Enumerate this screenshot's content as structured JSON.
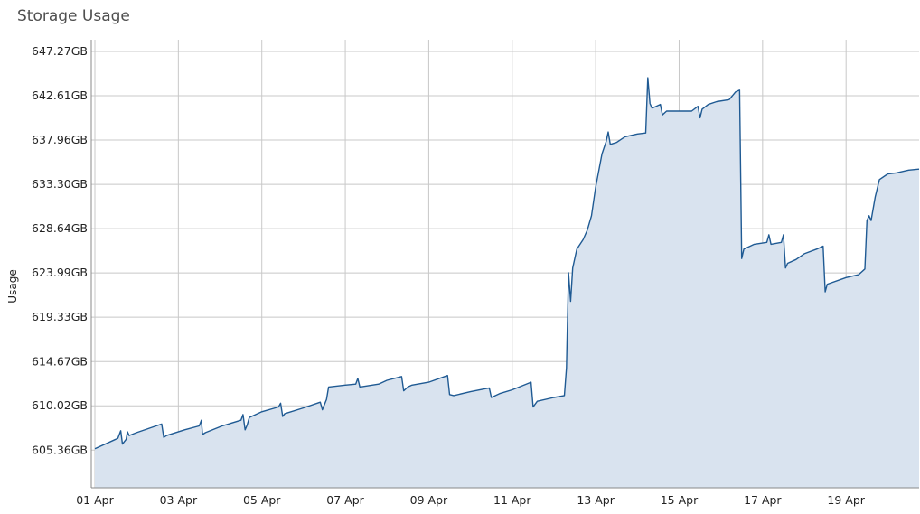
{
  "widget": {
    "title": "Storage Usage"
  },
  "chart_data": {
    "type": "area",
    "ylabel": "Usage",
    "xlabel": "",
    "grid": true,
    "legend": "none",
    "colors": {
      "line": "#1f5a93",
      "fill": "#d9e3ef",
      "grid": "#c8c8c8",
      "axis": "#888888"
    },
    "xlim": [
      0,
      19.75
    ],
    "ylim": [
      601.4,
      648.5
    ],
    "x_ticks": [
      {
        "x": 0,
        "label": "01 Apr"
      },
      {
        "x": 2,
        "label": "03 Apr"
      },
      {
        "x": 4,
        "label": "05 Apr"
      },
      {
        "x": 6,
        "label": "07 Apr"
      },
      {
        "x": 8,
        "label": "09 Apr"
      },
      {
        "x": 10,
        "label": "11 Apr"
      },
      {
        "x": 12,
        "label": "13 Apr"
      },
      {
        "x": 14,
        "label": "15 Apr"
      },
      {
        "x": 16,
        "label": "17 Apr"
      },
      {
        "x": 18,
        "label": "19 Apr"
      }
    ],
    "x_gridlines": [
      0,
      2,
      4,
      6,
      8,
      10,
      12,
      14,
      16,
      18
    ],
    "y_ticks": [
      {
        "y": 605.36,
        "label": "605.36GB"
      },
      {
        "y": 610.02,
        "label": "610.02GB"
      },
      {
        "y": 614.67,
        "label": "614.67GB"
      },
      {
        "y": 619.33,
        "label": "619.33GB"
      },
      {
        "y": 623.99,
        "label": "623.99GB"
      },
      {
        "y": 628.64,
        "label": "628.64GB"
      },
      {
        "y": 633.3,
        "label": "633.30GB"
      },
      {
        "y": 637.96,
        "label": "637.96GB"
      },
      {
        "y": 642.61,
        "label": "642.61GB"
      },
      {
        "y": 647.27,
        "label": "647.27GB"
      }
    ],
    "series": [
      {
        "values": [
          [
            0.0,
            605.5
          ],
          [
            0.55,
            606.6
          ],
          [
            0.62,
            607.4
          ],
          [
            0.66,
            606.0
          ],
          [
            0.75,
            606.5
          ],
          [
            0.78,
            607.3
          ],
          [
            0.82,
            606.9
          ],
          [
            1.0,
            607.2
          ],
          [
            1.6,
            608.1
          ],
          [
            1.65,
            606.7
          ],
          [
            1.72,
            606.9
          ],
          [
            2.15,
            607.5
          ],
          [
            2.5,
            607.9
          ],
          [
            2.55,
            608.5
          ],
          [
            2.58,
            607.0
          ],
          [
            2.65,
            607.2
          ],
          [
            3.05,
            607.9
          ],
          [
            3.5,
            608.5
          ],
          [
            3.55,
            609.1
          ],
          [
            3.6,
            607.5
          ],
          [
            3.65,
            608.0
          ],
          [
            3.7,
            608.8
          ],
          [
            4.0,
            609.4
          ],
          [
            4.4,
            609.9
          ],
          [
            4.45,
            610.3
          ],
          [
            4.5,
            608.9
          ],
          [
            4.55,
            609.2
          ],
          [
            5.0,
            609.8
          ],
          [
            5.4,
            610.4
          ],
          [
            5.45,
            609.6
          ],
          [
            5.55,
            610.7
          ],
          [
            5.6,
            612.0
          ],
          [
            6.0,
            612.2
          ],
          [
            6.25,
            612.3
          ],
          [
            6.3,
            612.9
          ],
          [
            6.35,
            612.0
          ],
          [
            6.8,
            612.3
          ],
          [
            7.0,
            612.7
          ],
          [
            7.35,
            613.1
          ],
          [
            7.4,
            611.6
          ],
          [
            7.5,
            612.0
          ],
          [
            7.6,
            612.2
          ],
          [
            8.0,
            612.5
          ],
          [
            8.45,
            613.2
          ],
          [
            8.5,
            611.2
          ],
          [
            8.6,
            611.1
          ],
          [
            9.0,
            611.5
          ],
          [
            9.45,
            611.9
          ],
          [
            9.5,
            610.9
          ],
          [
            9.7,
            611.3
          ],
          [
            10.0,
            611.7
          ],
          [
            10.45,
            612.5
          ],
          [
            10.5,
            609.9
          ],
          [
            10.6,
            610.5
          ],
          [
            11.0,
            610.9
          ],
          [
            11.25,
            611.1
          ],
          [
            11.3,
            614.0
          ],
          [
            11.35,
            624.0
          ],
          [
            11.4,
            621.0
          ],
          [
            11.45,
            624.5
          ],
          [
            11.55,
            626.5
          ],
          [
            11.7,
            627.5
          ],
          [
            11.8,
            628.5
          ],
          [
            11.9,
            630.0
          ],
          [
            12.0,
            633.0
          ],
          [
            12.15,
            636.5
          ],
          [
            12.25,
            637.8
          ],
          [
            12.3,
            638.8
          ],
          [
            12.35,
            637.5
          ],
          [
            12.5,
            637.7
          ],
          [
            12.7,
            638.3
          ],
          [
            13.0,
            638.6
          ],
          [
            13.2,
            638.7
          ],
          [
            13.25,
            644.5
          ],
          [
            13.3,
            641.8
          ],
          [
            13.35,
            641.3
          ],
          [
            13.45,
            641.5
          ],
          [
            13.55,
            641.7
          ],
          [
            13.6,
            640.6
          ],
          [
            13.7,
            641.0
          ],
          [
            14.0,
            641.0
          ],
          [
            14.3,
            641.0
          ],
          [
            14.45,
            641.5
          ],
          [
            14.5,
            640.3
          ],
          [
            14.55,
            641.2
          ],
          [
            14.7,
            641.7
          ],
          [
            14.9,
            642.0
          ],
          [
            15.2,
            642.2
          ],
          [
            15.35,
            643.0
          ],
          [
            15.45,
            643.2
          ],
          [
            15.5,
            625.5
          ],
          [
            15.55,
            626.5
          ],
          [
            15.8,
            627.0
          ],
          [
            16.1,
            627.2
          ],
          [
            16.15,
            628.0
          ],
          [
            16.2,
            627.0
          ],
          [
            16.45,
            627.2
          ],
          [
            16.5,
            628.0
          ],
          [
            16.55,
            624.5
          ],
          [
            16.6,
            625.0
          ],
          [
            16.8,
            625.4
          ],
          [
            17.0,
            626.0
          ],
          [
            17.3,
            626.5
          ],
          [
            17.45,
            626.8
          ],
          [
            17.5,
            622.0
          ],
          [
            17.55,
            622.8
          ],
          [
            18.0,
            623.5
          ],
          [
            18.3,
            623.8
          ],
          [
            18.45,
            624.4
          ],
          [
            18.5,
            629.5
          ],
          [
            18.55,
            630.0
          ],
          [
            18.6,
            629.5
          ],
          [
            18.7,
            632.0
          ],
          [
            18.8,
            633.8
          ],
          [
            19.0,
            634.4
          ],
          [
            19.2,
            634.5
          ],
          [
            19.5,
            634.8
          ],
          [
            19.75,
            634.9
          ]
        ]
      }
    ]
  }
}
